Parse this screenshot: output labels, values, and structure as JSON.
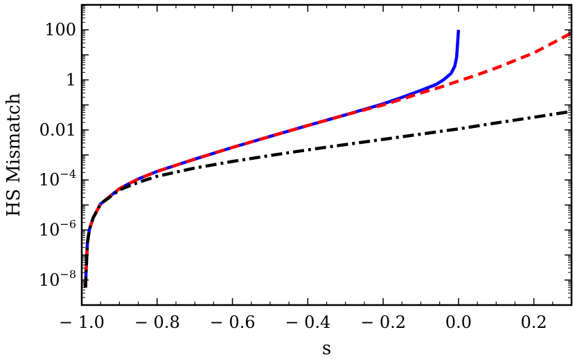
{
  "chart_data": {
    "type": "line",
    "xlabel": "s",
    "ylabel": "HS Mismatch",
    "xscale": "linear",
    "yscale": "log",
    "xlim": [
      -1.0,
      0.3
    ],
    "ylim": [
      1e-09,
      1000
    ],
    "grid": false,
    "x_ticks": [
      {
        "value": -1.0,
        "label": "− 1.0"
      },
      {
        "value": -0.8,
        "label": "− 0.8"
      },
      {
        "value": -0.6,
        "label": "− 0.6"
      },
      {
        "value": -0.4,
        "label": "− 0.4"
      },
      {
        "value": -0.2,
        "label": "− 0.2"
      },
      {
        "value": 0.0,
        "label": "0.0"
      },
      {
        "value": 0.2,
        "label": "0.2"
      }
    ],
    "y_ticks": [
      {
        "value": 100,
        "label": "100",
        "base": "",
        "exp": ""
      },
      {
        "value": 1,
        "label": "1",
        "base": "",
        "exp": ""
      },
      {
        "value": 0.01,
        "label": "0.01",
        "base": "",
        "exp": ""
      },
      {
        "value": 0.0001,
        "label": "",
        "base": "10",
        "exp": "−4"
      },
      {
        "value": 1e-06,
        "label": "",
        "base": "10",
        "exp": "−6"
      },
      {
        "value": 1e-08,
        "label": "",
        "base": "10",
        "exp": "−8"
      }
    ],
    "series": [
      {
        "color": "#0000ff",
        "style": "solid",
        "x": [
          -0.99,
          -0.989,
          -0.985,
          -0.98,
          -0.97,
          -0.95,
          -0.9,
          -0.85,
          -0.8,
          -0.7,
          -0.6,
          -0.5,
          -0.4,
          -0.3,
          -0.2,
          -0.15,
          -0.1,
          -0.06,
          -0.04,
          -0.02,
          -0.01,
          -0.005,
          0.0
        ],
        "y": [
          5e-09,
          1.5e-08,
          3e-07,
          1e-06,
          3e-06,
          1.1e-05,
          4.5e-05,
          0.00011,
          0.00022,
          0.00068,
          0.002,
          0.0055,
          0.015,
          0.04,
          0.11,
          0.2,
          0.38,
          0.65,
          1.0,
          1.8,
          3.5,
          8,
          100
        ]
      },
      {
        "color": "#ff0000",
        "style": "dashed",
        "x": [
          -0.99,
          -0.989,
          -0.985,
          -0.98,
          -0.97,
          -0.95,
          -0.9,
          -0.85,
          -0.8,
          -0.7,
          -0.6,
          -0.5,
          -0.4,
          -0.3,
          -0.2,
          -0.15,
          -0.1,
          -0.05,
          0.0,
          0.05,
          0.1,
          0.15,
          0.2,
          0.25,
          0.3
        ],
        "y": [
          5e-09,
          1.5e-08,
          3e-07,
          1e-06,
          3e-06,
          1.1e-05,
          4.5e-05,
          0.00011,
          0.00022,
          0.00068,
          0.002,
          0.0055,
          0.015,
          0.04,
          0.1,
          0.17,
          0.3,
          0.5,
          0.9,
          1.6,
          3,
          6,
          12,
          30,
          75
        ]
      },
      {
        "color": "#000000",
        "style": "dashdot",
        "x": [
          -0.99,
          -0.989,
          -0.985,
          -0.98,
          -0.97,
          -0.95,
          -0.9,
          -0.85,
          -0.8,
          -0.7,
          -0.6,
          -0.5,
          -0.4,
          -0.3,
          -0.2,
          -0.1,
          0.0,
          0.1,
          0.2,
          0.3
        ],
        "y": [
          5e-09,
          1.5e-08,
          3e-07,
          1e-06,
          3e-06,
          1.1e-05,
          4e-05,
          8e-05,
          0.00014,
          0.0003,
          0.00055,
          0.00095,
          0.0016,
          0.0026,
          0.0042,
          0.0068,
          0.011,
          0.019,
          0.032,
          0.055
        ]
      }
    ]
  }
}
